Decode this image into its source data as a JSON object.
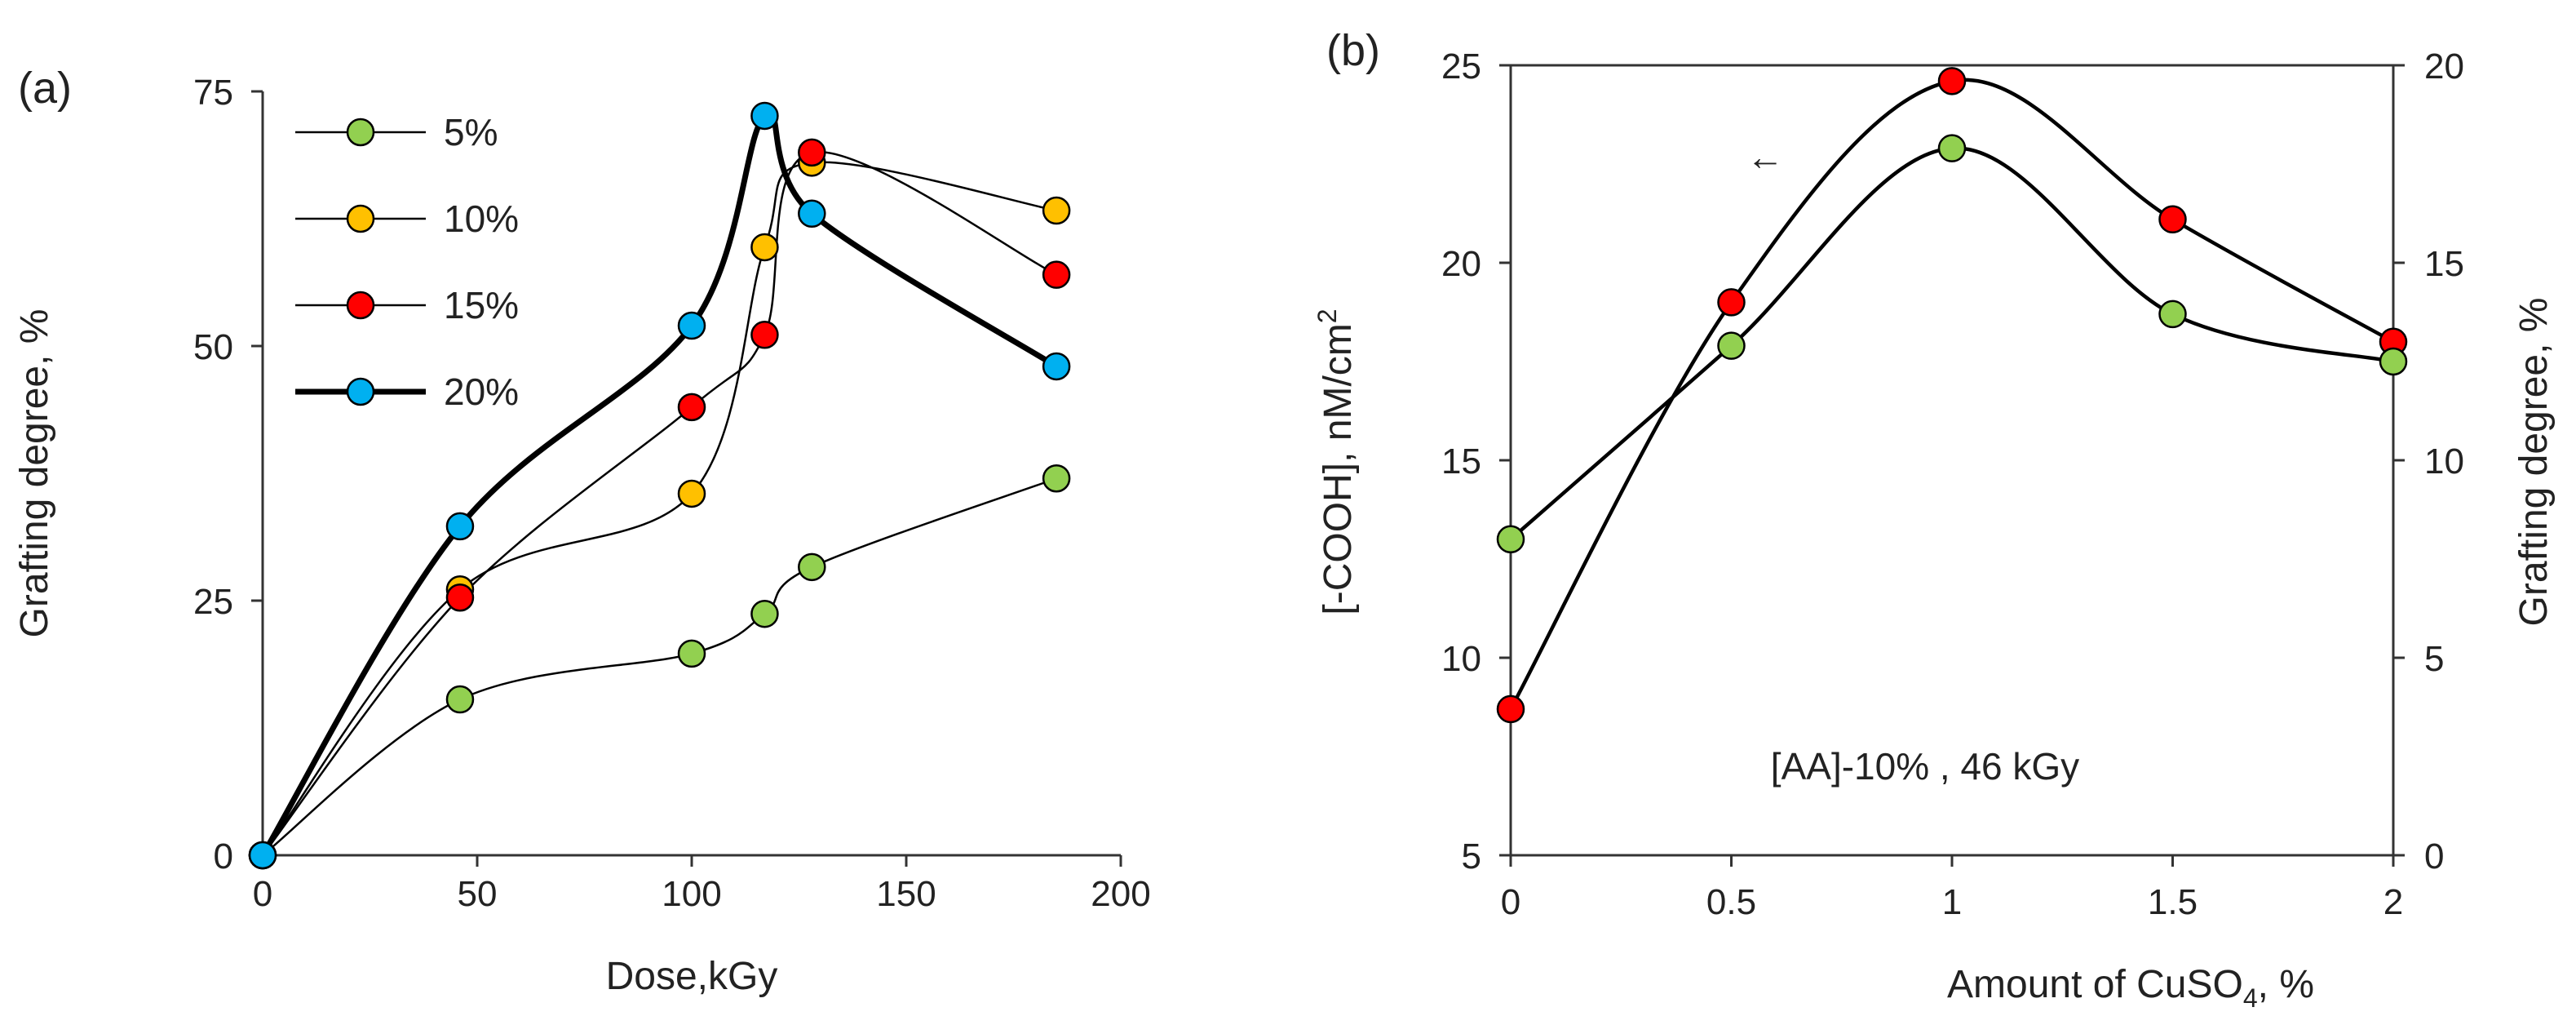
{
  "chart_data": [
    {
      "type": "line",
      "panel_label": "(a)",
      "xlabel": "Dose,kGy",
      "ylabel": "Grafting degree, %",
      "xlim": [
        0,
        200
      ],
      "ylim": [
        0,
        75
      ],
      "xticks": [
        "0",
        "50",
        "100",
        "150",
        "200"
      ],
      "yticks": [
        "0",
        "25",
        "50",
        "75"
      ],
      "legend_position": "top-left",
      "series": [
        {
          "name": "5%",
          "color": "#92d050",
          "thick": false,
          "x": [
            0,
            46,
            100,
            117,
            128,
            185
          ],
          "values": [
            0,
            15.3,
            19.8,
            23.7,
            28.3,
            37
          ]
        },
        {
          "name": "10%",
          "color": "#ffc000",
          "thick": false,
          "x": [
            0,
            46,
            100,
            117,
            128,
            185
          ],
          "values": [
            0,
            26.1,
            35.5,
            59.7,
            68,
            63.3
          ]
        },
        {
          "name": "15%",
          "color": "#ff0000",
          "thick": false,
          "x": [
            0,
            46,
            100,
            117,
            128,
            185
          ],
          "values": [
            0,
            25.3,
            44,
            51.1,
            69,
            57
          ]
        },
        {
          "name": "20%",
          "color": "#00b0f0",
          "thick": true,
          "x": [
            0,
            46,
            100,
            117,
            128,
            185
          ],
          "values": [
            0,
            32.3,
            52,
            72.6,
            63,
            48
          ]
        }
      ]
    },
    {
      "type": "line",
      "panel_label": "(b)",
      "xlabel": "Amount of CuSO",
      "xlabel_subscript": "4",
      "xlabel_suffix": ", %",
      "ylabel_left": "[-COOH], nM/cm",
      "ylabel_left_superscript": "2",
      "ylabel_right": "Grafting degree, %",
      "xlim": [
        0,
        2
      ],
      "ylim_left": [
        5,
        25
      ],
      "ylim_right": [
        0,
        20
      ],
      "xticks": [
        "0",
        "0.5",
        "1",
        "1.5",
        "2"
      ],
      "yticks_left": [
        "5",
        "10",
        "15",
        "20",
        "25"
      ],
      "yticks_right": [
        "0",
        "5",
        "10",
        "15",
        "20"
      ],
      "annotation": "[AA]-10% , 46 kGy",
      "arrow_annotation": "←",
      "series": [
        {
          "name": "[-COOH]",
          "axis": "left",
          "color": "#ff0000",
          "x": [
            0,
            0.5,
            1,
            1.5,
            2
          ],
          "values": [
            8.7,
            19,
            24.6,
            21.1,
            18
          ]
        },
        {
          "name": "Grafting degree",
          "axis": "right",
          "color": "#92d050",
          "x": [
            0,
            0.5,
            1,
            1.5,
            2
          ],
          "values": [
            8,
            12.9,
            17.9,
            13.7,
            12.5
          ]
        }
      ]
    }
  ]
}
